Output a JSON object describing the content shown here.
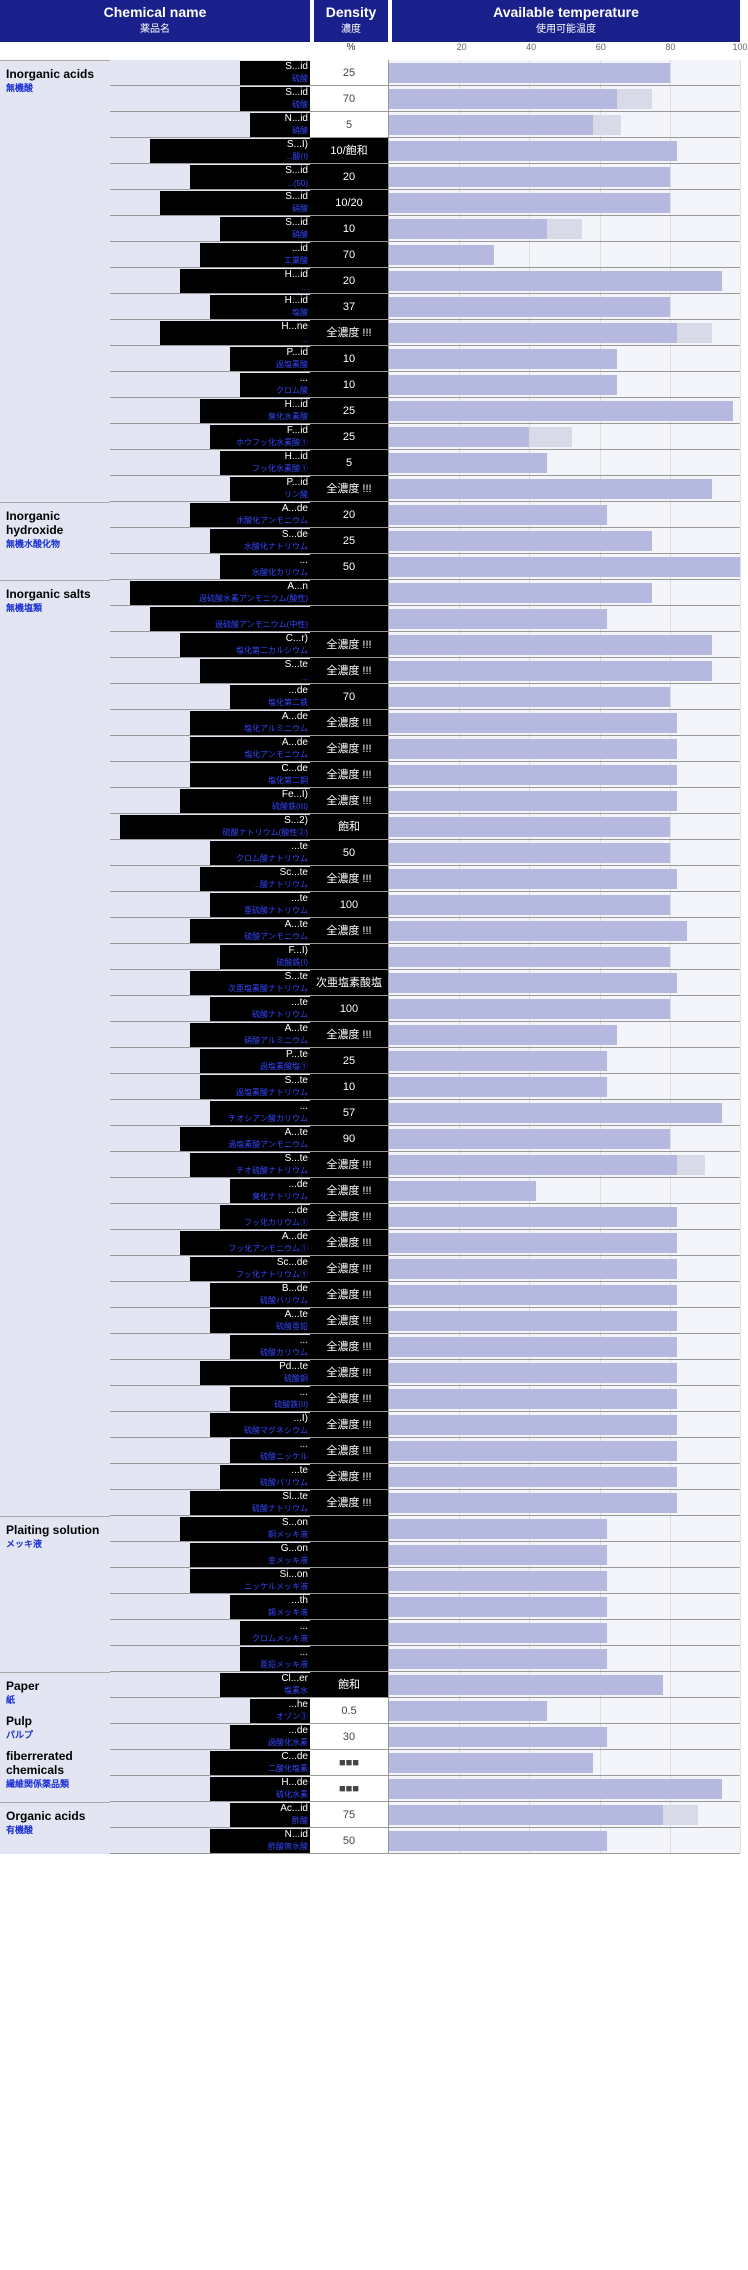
{
  "header": {
    "chemical": {
      "en": "Chemical name",
      "jp": "薬品名"
    },
    "density": {
      "en": "Density",
      "jp": "濃度",
      "unit": "%"
    },
    "temperature": {
      "en": "Available temperature",
      "jp": "使用可能温度"
    }
  },
  "axis": {
    "min": 0,
    "max": 100,
    "ticks": [
      20,
      40,
      60,
      80,
      100
    ]
  },
  "colors": {
    "header_bg": "#19208b",
    "group_bg": "#e3e5f3",
    "bar": "#b5b9e0",
    "bar_ext": "#d8dae8",
    "redact": "#000000"
  },
  "groups": [
    {
      "en": "Inorganic acids",
      "jp": "無機酸",
      "rows": [
        {
          "name_en": "S...id",
          "name_jp": "硫酸",
          "redact_w": 70,
          "density": "25",
          "dark": false,
          "bar": 80,
          "ext": 0
        },
        {
          "name_en": "S...id",
          "name_jp": "硫酸",
          "redact_w": 70,
          "density": "70",
          "dark": false,
          "bar": 65,
          "ext": 10
        },
        {
          "name_en": "N...id",
          "name_jp": "硝酸",
          "redact_w": 60,
          "density": "5",
          "dark": false,
          "bar": 58,
          "ext": 8
        },
        {
          "name_en": "S...I)",
          "name_jp": "...酸(I)",
          "redact_w": 160,
          "density": "10/飽和",
          "dark": true,
          "bar": 82,
          "ext": 0
        },
        {
          "name_en": "S...id",
          "name_jp": "...(50)",
          "redact_w": 120,
          "density": "20",
          "dark": true,
          "bar": 80,
          "ext": 0
        },
        {
          "name_en": "S...id",
          "name_jp": "硝酸",
          "redact_w": 150,
          "density": "10/20",
          "dark": true,
          "bar": 80,
          "ext": 0
        },
        {
          "name_en": "S...id",
          "name_jp": "硝酸",
          "redact_w": 90,
          "density": "10",
          "dark": true,
          "bar": 45,
          "ext": 10
        },
        {
          "name_en": "...id",
          "name_jp": "工業酸",
          "redact_w": 110,
          "density": "70",
          "dark": true,
          "bar": 30,
          "ext": 0
        },
        {
          "name_en": "H...id",
          "name_jp": "...",
          "redact_w": 130,
          "density": "20",
          "dark": true,
          "bar": 95,
          "ext": 0
        },
        {
          "name_en": "H...id",
          "name_jp": "塩酸",
          "redact_w": 100,
          "density": "37",
          "dark": true,
          "bar": 80,
          "ext": 0
        },
        {
          "name_en": "H...ne",
          "name_jp": "...",
          "redact_w": 150,
          "density": "全濃度 !!!",
          "dark": true,
          "bar": 82,
          "ext": 10
        },
        {
          "name_en": "P...id",
          "name_jp": "過塩素酸",
          "redact_w": 80,
          "density": "10",
          "dark": true,
          "bar": 65,
          "ext": 0
        },
        {
          "name_en": "...",
          "name_jp": "クロム酸",
          "redact_w": 70,
          "density": "10",
          "dark": true,
          "bar": 65,
          "ext": 0
        },
        {
          "name_en": "H...id",
          "name_jp": "臭化水素酸",
          "redact_w": 110,
          "density": "25",
          "dark": true,
          "bar": 98,
          "ext": 0
        },
        {
          "name_en": "F...id",
          "name_jp": "ホウフッ化水素酸①",
          "redact_w": 100,
          "density": "25",
          "dark": true,
          "bar": 40,
          "ext": 12
        },
        {
          "name_en": "H...id",
          "name_jp": "フッ化水素酸①",
          "redact_w": 90,
          "density": "5",
          "dark": true,
          "bar": 45,
          "ext": 0
        },
        {
          "name_en": "P...id",
          "name_jp": "リン酸",
          "redact_w": 80,
          "density": "全濃度 !!!",
          "dark": true,
          "bar": 92,
          "ext": 0
        }
      ]
    },
    {
      "en": "Inorganic hydroxide",
      "jp": "無機水酸化物",
      "rows": [
        {
          "name_en": "A...de",
          "name_jp": "水酸化アンモニウム",
          "redact_w": 120,
          "density": "20",
          "dark": true,
          "bar": 62,
          "ext": 0
        },
        {
          "name_en": "S...de",
          "name_jp": "水酸化ナトリウム",
          "redact_w": 100,
          "density": "25",
          "dark": true,
          "bar": 75,
          "ext": 0
        },
        {
          "name_en": "...",
          "name_jp": "水酸化カリウム",
          "redact_w": 90,
          "density": "50",
          "dark": true,
          "bar": 100,
          "ext": 0
        }
      ]
    },
    {
      "en": "Inorganic salts",
      "jp": "無機塩類",
      "rows": [
        {
          "name_en": "A...n",
          "name_jp": "過硫酸水素アンモニウム(酸性)",
          "redact_w": 180,
          "density": "",
          "dark": true,
          "bar": 75,
          "ext": 0
        },
        {
          "name_en": "",
          "name_jp": "過硫酸アンモニウム(中性)",
          "redact_w": 160,
          "density": "",
          "dark": true,
          "bar": 62,
          "ext": 0
        },
        {
          "name_en": "C...r)",
          "name_jp": "塩化第二カルシウム",
          "redact_w": 130,
          "density": "全濃度 !!!",
          "dark": true,
          "bar": 92,
          "ext": 0
        },
        {
          "name_en": "S...te",
          "name_jp": "...",
          "redact_w": 110,
          "density": "全濃度 !!!",
          "dark": true,
          "bar": 92,
          "ext": 0
        },
        {
          "name_en": "...de",
          "name_jp": "塩化第二鉄",
          "redact_w": 80,
          "density": "70",
          "dark": true,
          "bar": 80,
          "ext": 0
        },
        {
          "name_en": "A...de",
          "name_jp": "塩化アルミニウム",
          "redact_w": 120,
          "density": "全濃度 !!!",
          "dark": true,
          "bar": 82,
          "ext": 0
        },
        {
          "name_en": "A...de",
          "name_jp": "塩化アンモニウム",
          "redact_w": 120,
          "density": "全濃度 !!!",
          "dark": true,
          "bar": 82,
          "ext": 0
        },
        {
          "name_en": "C...de",
          "name_jp": "塩化第二銅",
          "redact_w": 120,
          "density": "全濃度 !!!",
          "dark": true,
          "bar": 82,
          "ext": 0
        },
        {
          "name_en": "Fe...I)",
          "name_jp": "硫酸鉄(III)",
          "redact_w": 130,
          "density": "全濃度 !!!",
          "dark": true,
          "bar": 82,
          "ext": 0
        },
        {
          "name_en": "S...2)",
          "name_jp": "硫酸ナトリウム(酸性②)",
          "redact_w": 190,
          "density": "飽和",
          "dark": true,
          "bar": 80,
          "ext": 0
        },
        {
          "name_en": "...te",
          "name_jp": "クロム酸ナトリウム",
          "redact_w": 100,
          "density": "50",
          "dark": true,
          "bar": 80,
          "ext": 0
        },
        {
          "name_en": "Sc...te",
          "name_jp": "...酸ナトリウム",
          "redact_w": 110,
          "density": "全濃度 !!!",
          "dark": true,
          "bar": 82,
          "ext": 0
        },
        {
          "name_en": "...te",
          "name_jp": "亜硫酸ナトリウム",
          "redact_w": 100,
          "density": "100",
          "dark": true,
          "bar": 80,
          "ext": 0
        },
        {
          "name_en": "A...te",
          "name_jp": "硫酸アンモニウム",
          "redact_w": 120,
          "density": "全濃度 !!!",
          "dark": true,
          "bar": 85,
          "ext": 0
        },
        {
          "name_en": "F...I)",
          "name_jp": "硫酸鉄(I)",
          "redact_w": 90,
          "density": "",
          "dark": true,
          "bar": 80,
          "ext": 0
        },
        {
          "name_en": "S...te",
          "name_jp": "次亜塩素酸ナトリウム",
          "redact_w": 120,
          "density": "次亜塩素酸塩",
          "dark": true,
          "bar": 82,
          "ext": 0
        },
        {
          "name_en": "...te",
          "name_jp": "硫酸ナトリウム",
          "redact_w": 100,
          "density": "100",
          "dark": true,
          "bar": 80,
          "ext": 0
        },
        {
          "name_en": "A...te",
          "name_jp": "硝酸アルミニウム",
          "redact_w": 120,
          "density": "全濃度 !!!",
          "dark": true,
          "bar": 65,
          "ext": 0
        },
        {
          "name_en": "P...te",
          "name_jp": "過塩素酸塩①",
          "redact_w": 110,
          "density": "25",
          "dark": true,
          "bar": 62,
          "ext": 0
        },
        {
          "name_en": "S...te",
          "name_jp": "過塩素酸ナトリウム",
          "redact_w": 110,
          "density": "10",
          "dark": true,
          "bar": 62,
          "ext": 0
        },
        {
          "name_en": "...",
          "name_jp": "チオシアン酸カリウム",
          "redact_w": 100,
          "density": "57",
          "dark": true,
          "bar": 95,
          "ext": 0
        },
        {
          "name_en": "A...te",
          "name_jp": "過塩素酸アンモニウム",
          "redact_w": 130,
          "density": "90",
          "dark": true,
          "bar": 80,
          "ext": 0
        },
        {
          "name_en": "S...te",
          "name_jp": "チオ硫酸ナトリウム",
          "redact_w": 120,
          "density": "全濃度 !!!",
          "dark": true,
          "bar": 82,
          "ext": 8
        },
        {
          "name_en": "...de",
          "name_jp": "臭化ナトリウム",
          "redact_w": 80,
          "density": "全濃度 !!!",
          "dark": true,
          "bar": 42,
          "ext": 0
        },
        {
          "name_en": "...de",
          "name_jp": "フッ化カリウム①",
          "redact_w": 90,
          "density": "全濃度 !!!",
          "dark": true,
          "bar": 82,
          "ext": 0
        },
        {
          "name_en": "A...de",
          "name_jp": "フッ化アンモニウム①",
          "redact_w": 130,
          "density": "全濃度 !!!",
          "bar": 82,
          "dark": true,
          "ext": 0
        },
        {
          "name_en": "Sc...de",
          "name_jp": "フッ化ナトリウム①",
          "redact_w": 120,
          "density": "全濃度 !!!",
          "dark": true,
          "bar": 82,
          "ext": 0
        },
        {
          "name_en": "B...de",
          "name_jp": "硫酸バリウム",
          "redact_w": 100,
          "density": "全濃度 !!!",
          "dark": true,
          "bar": 82,
          "ext": 0
        },
        {
          "name_en": "A...te",
          "name_jp": "硫酸亜鉛",
          "redact_w": 100,
          "density": "全濃度 !!!",
          "dark": true,
          "bar": 82,
          "ext": 0
        },
        {
          "name_en": "...",
          "name_jp": "硫酸カリウム",
          "redact_w": 80,
          "density": "全濃度 !!!",
          "dark": true,
          "bar": 82,
          "ext": 0
        },
        {
          "name_en": "Pd...te",
          "name_jp": "硫酸銅",
          "redact_w": 110,
          "density": "全濃度 !!!",
          "dark": true,
          "bar": 82,
          "ext": 0
        },
        {
          "name_en": "...",
          "name_jp": "硫酸鉄(II)",
          "redact_w": 80,
          "density": "全濃度 !!!",
          "dark": true,
          "bar": 82,
          "ext": 0
        },
        {
          "name_en": "...I)",
          "name_jp": "硫酸マグネシウム",
          "redact_w": 100,
          "density": "全濃度 !!!",
          "dark": true,
          "bar": 82,
          "ext": 0
        },
        {
          "name_en": "...",
          "name_jp": "硫酸ニッケル",
          "redact_w": 80,
          "density": "全濃度 !!!",
          "dark": true,
          "bar": 82,
          "ext": 0
        },
        {
          "name_en": "...te",
          "name_jp": "硫酸バリウム",
          "redact_w": 90,
          "density": "全濃度 !!!",
          "dark": true,
          "bar": 82,
          "ext": 0
        },
        {
          "name_en": "Sl...te",
          "name_jp": "硫酸ナトリウム",
          "redact_w": 120,
          "density": "全濃度 !!!",
          "dark": true,
          "bar": 82,
          "ext": 0
        }
      ]
    },
    {
      "en": "Plaiting solution",
      "jp": "メッキ液",
      "rows": [
        {
          "name_en": "S...on",
          "name_jp": "銅メッキ液",
          "redact_w": 130,
          "density": "",
          "dark": true,
          "bar": 62,
          "ext": 0
        },
        {
          "name_en": "G...on",
          "name_jp": "金メッキ液",
          "redact_w": 120,
          "density": "",
          "dark": true,
          "bar": 62,
          "ext": 0
        },
        {
          "name_en": "Si...on",
          "name_jp": "ニッケルメッキ液",
          "redact_w": 120,
          "density": "",
          "dark": true,
          "bar": 62,
          "ext": 0
        },
        {
          "name_en": "...th",
          "name_jp": "錫メッキ液",
          "redact_w": 80,
          "density": "",
          "dark": true,
          "bar": 62,
          "ext": 0
        },
        {
          "name_en": "...",
          "name_jp": "クロムメッキ液",
          "redact_w": 70,
          "density": "",
          "dark": true,
          "bar": 62,
          "ext": 0
        },
        {
          "name_en": "...",
          "name_jp": "亜鉛メッキ液",
          "redact_w": 70,
          "density": "",
          "dark": true,
          "bar": 62,
          "ext": 0
        }
      ]
    },
    {
      "en": "Paper",
      "jp": "紙",
      "extra_labels": [
        {
          "en": "Pulp",
          "jp": "パルプ"
        },
        {
          "en": "fiberrerated chemicals",
          "jp": "繊維関係薬品類"
        }
      ],
      "rows": [
        {
          "name_en": "Cl...er",
          "name_jp": "塩素水",
          "redact_w": 90,
          "density": "飽和",
          "dark": true,
          "bar": 78,
          "ext": 0
        },
        {
          "name_en": "...he",
          "name_jp": "オゾン③",
          "redact_w": 60,
          "density": "0.5",
          "dark": false,
          "bar": 45,
          "ext": 0
        },
        {
          "name_en": "...de",
          "name_jp": "過酸化水素",
          "redact_w": 80,
          "density": "30",
          "dark": false,
          "bar": 62,
          "ext": 0
        },
        {
          "name_en": "C...de",
          "name_jp": "二酸化塩素",
          "redact_w": 100,
          "density": "■■■",
          "dark": false,
          "bar": 58,
          "ext": 0
        },
        {
          "name_en": "H...de",
          "name_jp": "硫化水素",
          "redact_w": 100,
          "density": "■■■",
          "dark": false,
          "bar": 95,
          "ext": 0
        }
      ]
    },
    {
      "en": "Organic acids",
      "jp": "有機酸",
      "rows": [
        {
          "name_en": "Ac...id",
          "name_jp": "酢酸",
          "redact_w": 80,
          "density": "75",
          "dark": false,
          "bar": 78,
          "ext": 10
        },
        {
          "name_en": "N...id",
          "name_jp": "酢酸無水酸",
          "redact_w": 100,
          "density": "50",
          "dark": false,
          "bar": 62,
          "ext": 0
        }
      ]
    }
  ]
}
